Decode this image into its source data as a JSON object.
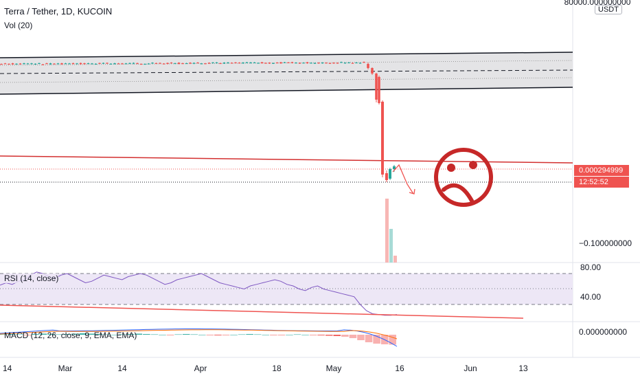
{
  "header": {
    "symbol_line": "Terra / Tether, 1D, KUCOIN",
    "volume_indicator": "Vol (20)"
  },
  "price_axis": {
    "currency": "USDT",
    "top_label": "80000.000000000",
    "mid_label": "−0.100000000",
    "last_price": "0.000294999",
    "countdown": "12:52:52"
  },
  "rsi": {
    "title": "RSI (14, close)",
    "upper_label": "80.00",
    "lower_label": "40.00",
    "upper_band": 70,
    "lower_band": 30,
    "values": [
      55,
      58,
      56,
      60,
      62,
      68,
      72,
      70,
      66,
      64,
      68,
      70,
      66,
      62,
      58,
      60,
      64,
      68,
      66,
      64,
      62,
      66,
      68,
      70,
      68,
      64,
      60,
      56,
      58,
      62,
      64,
      66,
      68,
      70,
      66,
      62,
      58,
      56,
      54,
      52,
      50,
      54,
      56,
      58,
      60,
      62,
      60,
      56,
      54,
      50,
      48,
      52,
      54,
      50,
      48,
      46,
      44,
      42,
      40,
      30,
      22,
      18,
      17,
      16,
      16,
      17
    ]
  },
  "macd": {
    "title": "MACD (12, 26, close, 9, EMA, EMA)",
    "zero_label": "0.000000000",
    "histogram": [
      0.1,
      0.2,
      0.1,
      -0.1,
      0.2,
      0.3,
      0.2,
      0.1,
      0.2,
      0.3,
      0.4,
      0.3,
      0.2,
      0.1,
      0.0,
      0.1,
      0.2,
      0.3,
      0.2,
      0.1,
      0.0,
      -0.1,
      0.1,
      0.2,
      0.1,
      0.0,
      -0.1,
      -0.2,
      -0.1,
      0.0,
      0.1,
      0.2,
      0.1,
      0.0,
      -0.1,
      -0.1,
      0.0,
      0.1,
      0.0,
      -0.1,
      -0.2,
      -0.3,
      -0.4,
      -0.6,
      -1.0,
      -1.6,
      -2.2,
      -2.6,
      -2.8,
      -2.9
    ]
  },
  "time_axis": {
    "labels": [
      "14",
      "Mar",
      "14",
      "Apr",
      "18",
      "May",
      "16",
      "Jun",
      "13"
    ]
  },
  "chart_data": {
    "type": "candlestick",
    "title": "Terra / Tether, 1D, KUCOIN",
    "x_ticks": [
      "14",
      "Mar",
      "14",
      "Apr",
      "18",
      "May",
      "16",
      "Jun",
      "13"
    ],
    "y_ticks": [
      "80000.000000000",
      "−0.100000000"
    ],
    "last_price": 0.000294999,
    "series": [
      {
        "name": "Terra / Tether, 1D, KUCOIN",
        "phase": "stable sideways then collapse",
        "candles_shape": [
          {
            "phase": "stable",
            "start": "mid-Feb",
            "end": "early May"
          },
          {
            "phase": "crash",
            "start": "May 9",
            "end": "May 13"
          },
          {
            "phase": "bottom",
            "start": "May 13",
            "end": "May 16"
          }
        ]
      }
    ],
    "annotations": [
      "sad-face drawing",
      "downward arrow"
    ]
  },
  "colors": {
    "up": "#26a69a",
    "down": "#ef5350",
    "rsi_line": "#7e57c2",
    "rsi_band": "#ede7f6",
    "macd_line": "#2962ff",
    "signal_line": "#ff6d00",
    "trend_line": "#d32f2f"
  }
}
